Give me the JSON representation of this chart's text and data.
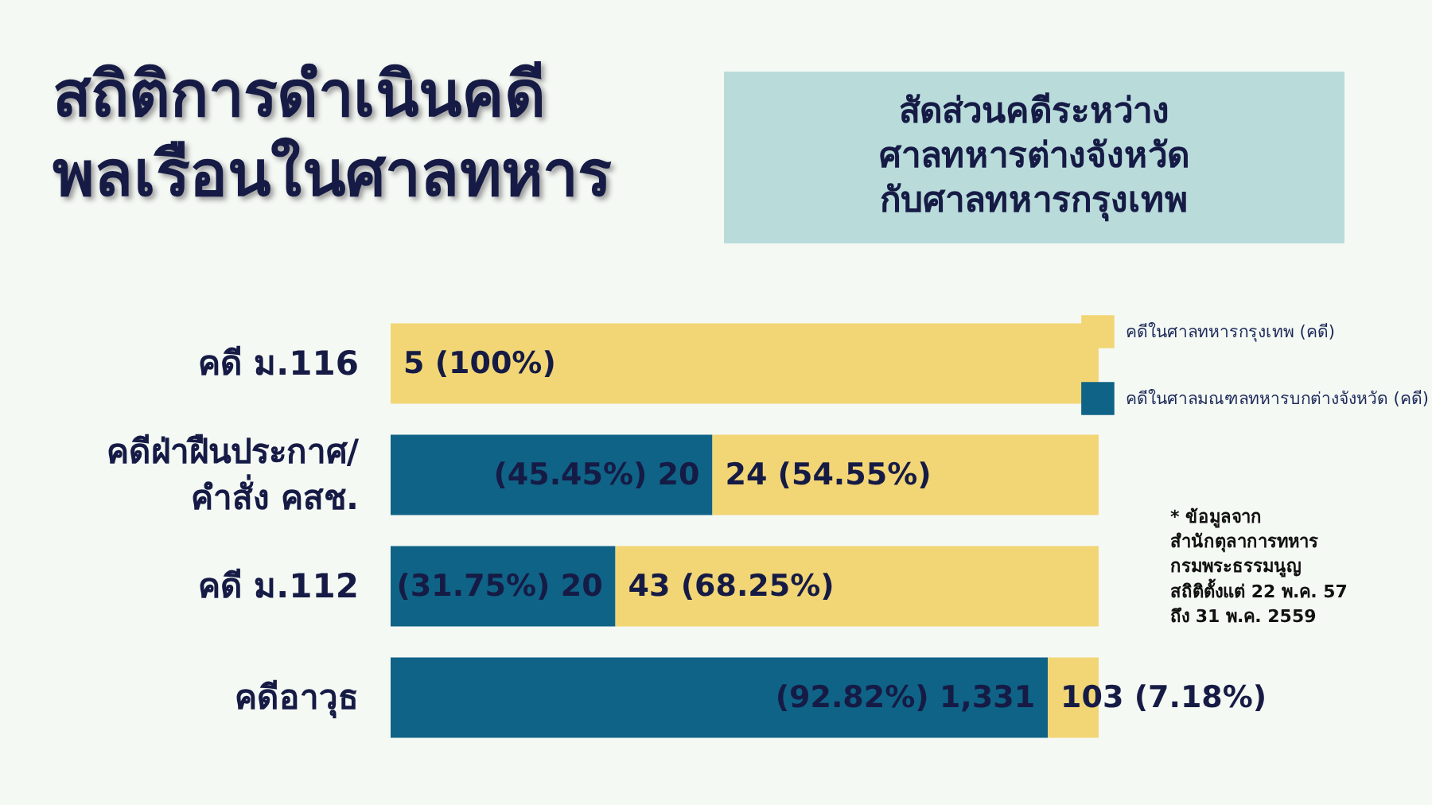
{
  "chart_data": {
    "type": "bar",
    "orientation": "horizontal",
    "stacked": true,
    "title": "สถิติการดำเนินคดี\nพลเรือนในศาลทหาร",
    "subtitle": "สัดส่วนคดีระหว่าง\nศาลทหารต่างจังหวัด\nกับศาลทหารกรุงเทพ",
    "categories": [
      "คดี ม.116",
      "คดีฝ่าฝืนประกาศ/\nคำสั่ง คสช.",
      "คดี ม.112",
      "คดีอาวุธ"
    ],
    "series": [
      {
        "name": "คดีในศาลมณฑลทหารบกต่างจังหวัด (คดี)",
        "color": "#0f6386",
        "values": [
          0,
          45.45,
          31.75,
          92.82
        ],
        "value_labels": [
          null,
          "(45.45%) 20",
          "(31.75%) 20",
          "(92.82%) 1,331"
        ]
      },
      {
        "name": "คดีในศาลทหารกรุงเทพ (คดี)",
        "color": "#f2d675",
        "values": [
          100,
          54.55,
          68.25,
          7.18
        ],
        "value_labels": [
          "5 (100%)",
          "24 (54.55%)",
          "43 (68.25%)",
          "103 (7.18%)"
        ]
      }
    ],
    "annotations": [
      "* ข้อมูลจาก\nสำนักตุลาการทหาร\nกรมพระธรรมนูญ\nสถิติตั้งแต่ 22 พ.ค. 57\nถึง 31 พ.ค. 2559"
    ],
    "legend": "top right",
    "grid": false
  }
}
